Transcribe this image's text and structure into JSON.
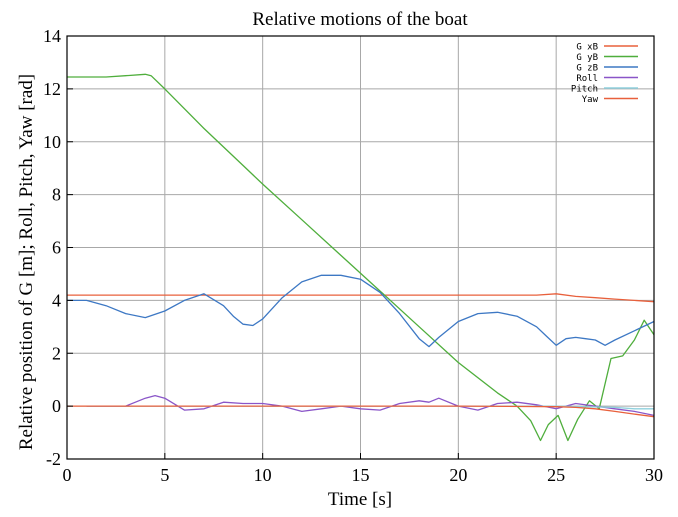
{
  "chart_data": {
    "type": "line",
    "title": "Relative motions of the boat",
    "xlabel": "Time [s]",
    "ylabel": "Relative position of G [m]; Roll, Pitch, Yaw [rad]",
    "xlim": [
      0,
      30
    ],
    "ylim": [
      -2,
      14
    ],
    "xticks": [
      0,
      5,
      10,
      15,
      20,
      25,
      30
    ],
    "yticks": [
      -2,
      0,
      2,
      4,
      6,
      8,
      10,
      12,
      14
    ],
    "grid": true,
    "legend_position": "top-right",
    "series": [
      {
        "name": "G xB",
        "color": "#e8603c",
        "x": [
          0,
          5,
          10,
          15,
          20,
          24,
          25,
          26,
          27,
          28,
          29,
          30
        ],
        "y": [
          4.2,
          4.2,
          4.2,
          4.2,
          4.2,
          4.2,
          4.25,
          4.15,
          4.1,
          4.05,
          4.0,
          3.95
        ]
      },
      {
        "name": "G yB",
        "color": "#4fae3c",
        "x": [
          0,
          1,
          2,
          3,
          4,
          4.3,
          5,
          7,
          9,
          10,
          12,
          14,
          16,
          18,
          20,
          22,
          23,
          23.7,
          24.2,
          24.6,
          25.1,
          25.6,
          26.1,
          26.7,
          27.2,
          27.8,
          28.4,
          29.0,
          29.5,
          30
        ],
        "y": [
          12.45,
          12.45,
          12.45,
          12.5,
          12.55,
          12.5,
          12.0,
          10.5,
          9.1,
          8.4,
          7.05,
          5.7,
          4.35,
          3.0,
          1.65,
          0.5,
          0.0,
          -0.55,
          -1.3,
          -0.7,
          -0.35,
          -1.3,
          -0.5,
          0.2,
          -0.1,
          1.8,
          1.9,
          2.5,
          3.25,
          2.7
        ]
      },
      {
        "name": "G zB",
        "color": "#3d78c4",
        "x": [
          0,
          1,
          2,
          3,
          4,
          5,
          6,
          7,
          8,
          8.5,
          9,
          9.5,
          10,
          11,
          12,
          13,
          14,
          15,
          16,
          17,
          18,
          18.5,
          19,
          20,
          21,
          22,
          23,
          24,
          24.5,
          25,
          25.5,
          26,
          26.5,
          27,
          27.5,
          28,
          29,
          30
        ],
        "y": [
          4.0,
          4.0,
          3.8,
          3.5,
          3.35,
          3.6,
          4.0,
          4.25,
          3.8,
          3.4,
          3.1,
          3.05,
          3.3,
          4.1,
          4.7,
          4.95,
          4.95,
          4.8,
          4.3,
          3.5,
          2.55,
          2.25,
          2.6,
          3.2,
          3.5,
          3.55,
          3.4,
          3.0,
          2.65,
          2.3,
          2.55,
          2.6,
          2.55,
          2.5,
          2.3,
          2.5,
          2.85,
          3.2
        ]
      },
      {
        "name": "Roll",
        "color": "#8a55c8",
        "x": [
          1,
          3,
          4,
          4.5,
          5,
          6,
          7,
          8,
          9,
          10,
          11,
          12,
          13,
          14,
          15,
          16,
          17,
          18,
          18.5,
          19,
          20,
          21,
          22,
          23,
          24,
          25,
          26,
          27,
          28,
          29,
          30
        ],
        "y": [
          0.0,
          0.0,
          0.3,
          0.4,
          0.3,
          -0.15,
          -0.1,
          0.15,
          0.1,
          0.1,
          0.0,
          -0.2,
          -0.1,
          0.0,
          -0.1,
          -0.15,
          0.1,
          0.2,
          0.15,
          0.3,
          0.0,
          -0.15,
          0.1,
          0.15,
          0.05,
          -0.1,
          0.1,
          0.0,
          -0.1,
          -0.2,
          -0.35
        ]
      },
      {
        "name": "Pitch",
        "color": "#8fd0dd",
        "x": [
          1,
          5,
          10,
          15,
          20,
          25,
          28,
          29,
          30
        ],
        "y": [
          0.0,
          0.0,
          0.0,
          0.0,
          0.0,
          0.0,
          -0.05,
          -0.1,
          -0.1
        ]
      },
      {
        "name": "Yaw",
        "color": "#e8603c",
        "x": [
          0,
          5,
          10,
          15,
          20,
          25,
          26,
          27,
          28,
          29,
          30
        ],
        "y": [
          0.0,
          0.0,
          0.0,
          0.0,
          0.0,
          -0.02,
          -0.05,
          -0.1,
          -0.2,
          -0.3,
          -0.4
        ]
      }
    ]
  }
}
